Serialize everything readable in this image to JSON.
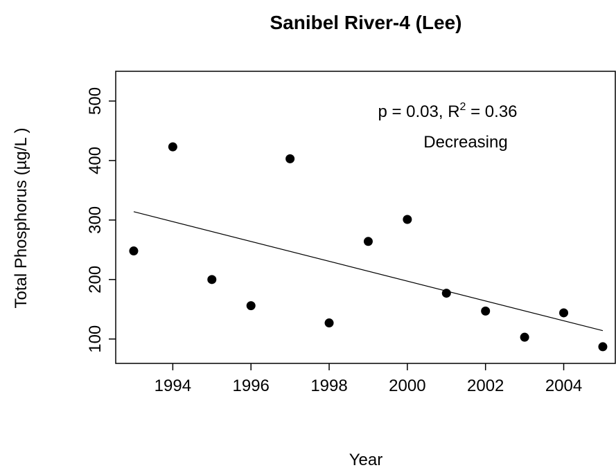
{
  "chart_data": {
    "type": "scatter",
    "title": "Sanibel River-4 (Lee)",
    "x_label": "Year",
    "y_label": "Total Phosphorus (µg/L )",
    "annotation": {
      "text": "p = 0.03, R",
      "sup": "2",
      "rest": " = 0.36",
      "trend": "Decreasing"
    },
    "x": [
      1993,
      1994,
      1995,
      1996,
      1997,
      1998,
      1999,
      2000,
      2001,
      2002,
      2003,
      2004,
      2005
    ],
    "values": [
      248,
      423,
      200,
      156,
      403,
      127,
      264,
      301,
      177,
      147,
      103,
      144,
      87
    ],
    "color": "#000000",
    "trend_line": {
      "x": [
        1993,
        2005
      ],
      "values": [
        314,
        114
      ]
    },
    "xlim": [
      1992.54,
      2005.32
    ],
    "xticks": [
      1994,
      1996,
      1998,
      2000,
      2002,
      2004
    ],
    "ylim": [
      59,
      550
    ],
    "yticks": [
      100,
      200,
      300,
      400,
      500
    ],
    "grid": false
  }
}
